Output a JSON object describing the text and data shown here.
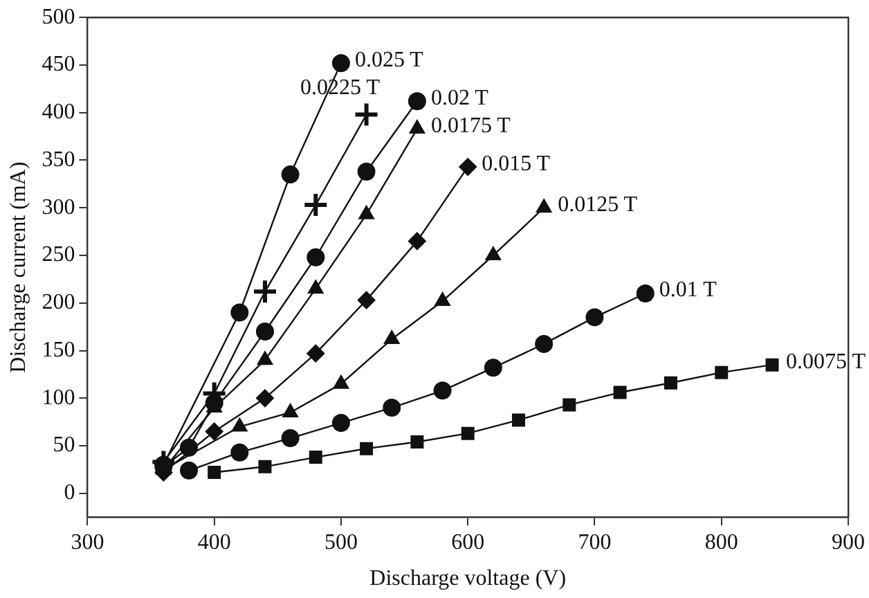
{
  "chart_data": {
    "type": "line",
    "xlabel": "Discharge voltage (V)",
    "ylabel": "Discharge current (mA)",
    "xlim": [
      300,
      900
    ],
    "xticks": [
      300,
      400,
      500,
      600,
      700,
      800,
      900
    ],
    "ylim": [
      -25,
      500
    ],
    "yticks": [
      0,
      50,
      100,
      150,
      200,
      250,
      300,
      350,
      400,
      450,
      500
    ],
    "grid": false,
    "legend": false,
    "line_style": "solid",
    "series": [
      {
        "name": "0.025 T",
        "color": "#111111",
        "marker": "circle",
        "x": [
          360,
          420,
          460,
          500
        ],
        "values": [
          30,
          190,
          335,
          452
        ]
      },
      {
        "name": "0.0225 T",
        "color": "#111111",
        "marker": "cross",
        "x": [
          360,
          400,
          440,
          480,
          520
        ],
        "values": [
          33,
          105,
          212,
          303,
          398
        ]
      },
      {
        "name": "0.02 T",
        "color": "#111111",
        "marker": "circle",
        "x": [
          360,
          380,
          400,
          440,
          480,
          520,
          560
        ],
        "values": [
          28,
          48,
          95,
          170,
          248,
          338,
          412
        ]
      },
      {
        "name": "0.0175 T",
        "color": "#111111",
        "marker": "triangle",
        "x": [
          360,
          400,
          440,
          480,
          520,
          560
        ],
        "values": [
          25,
          90,
          140,
          215,
          293,
          383
        ]
      },
      {
        "name": "0.015 T",
        "color": "#111111",
        "marker": "diamond",
        "x": [
          360,
          400,
          440,
          480,
          520,
          560,
          600
        ],
        "values": [
          22,
          65,
          100,
          147,
          203,
          265,
          343
        ]
      },
      {
        "name": "0.0125 T",
        "color": "#111111",
        "marker": "triangle",
        "x": [
          360,
          420,
          460,
          500,
          540,
          580,
          620,
          660
        ],
        "values": [
          25,
          70,
          85,
          115,
          162,
          202,
          250,
          300
        ]
      },
      {
        "name": "0.01 T",
        "color": "#111111",
        "marker": "circle",
        "x": [
          380,
          420,
          460,
          500,
          540,
          580,
          620,
          660,
          700,
          740
        ],
        "values": [
          24,
          43,
          58,
          74,
          90,
          108,
          132,
          157,
          185,
          210
        ]
      },
      {
        "name": "0.0075 T",
        "color": "#111111",
        "marker": "square",
        "x": [
          400,
          440,
          480,
          520,
          560,
          600,
          640,
          680,
          720,
          760,
          800,
          840
        ],
        "values": [
          22,
          28,
          38,
          47,
          54,
          63,
          77,
          93,
          106,
          116,
          127,
          135
        ]
      }
    ]
  }
}
